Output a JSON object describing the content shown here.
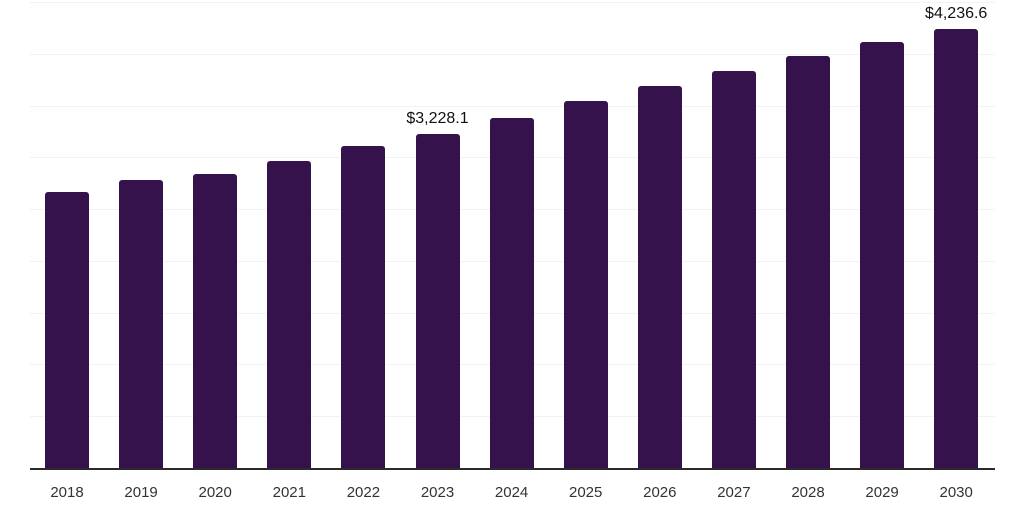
{
  "chart_data": {
    "type": "bar",
    "title": "",
    "xlabel": "",
    "ylabel": "",
    "categories": [
      "2018",
      "2019",
      "2020",
      "2021",
      "2022",
      "2023",
      "2024",
      "2025",
      "2026",
      "2027",
      "2028",
      "2029",
      "2030"
    ],
    "values": [
      2670,
      2780,
      2840,
      2965,
      3105,
      3228.1,
      3380,
      3540,
      3685,
      3830,
      3980,
      4110,
      4236.6
    ],
    "value_labels": [
      "",
      "",
      "",
      "",
      "",
      "$3,228.1",
      "",
      "",
      "",
      "",
      "",
      "",
      "$4,236.6"
    ],
    "ylim": [
      0,
      4500
    ],
    "grid_step": 500,
    "grid_on": true,
    "legend": "none",
    "colors": {
      "bar": "#35124b",
      "axis": "#2b2b2b",
      "gridline": "#f2f2f2",
      "value_label": "#111111",
      "tick_label": "#333333",
      "background": "#ffffff"
    }
  }
}
